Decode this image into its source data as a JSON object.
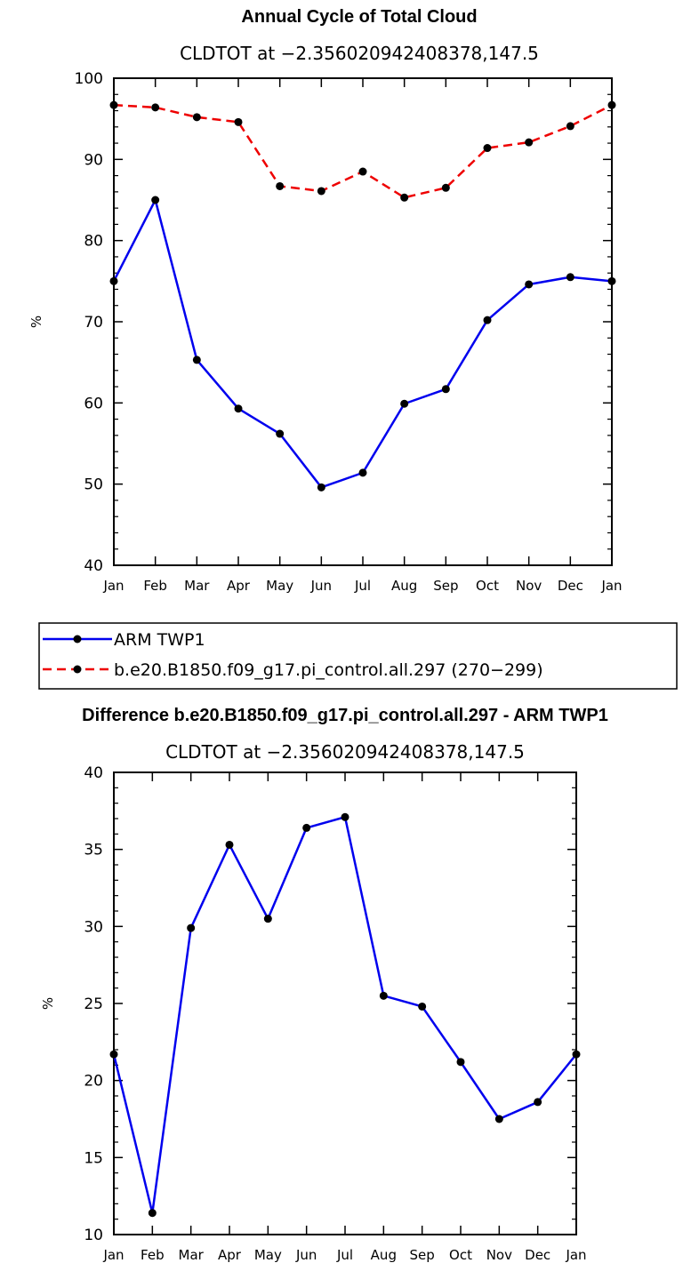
{
  "colors": {
    "blue": "#0000ee",
    "red": "#ee0000",
    "marker": "#000000"
  },
  "chart_data": [
    {
      "type": "line",
      "title": "Annual Cycle of Total Cloud",
      "subtitle": "CLDTOT at −2.356020942408378,147.5",
      "ylabel": "%",
      "ylim": [
        40,
        100
      ],
      "yticks": [
        "40",
        "50",
        "60",
        "70",
        "80",
        "90",
        "100"
      ],
      "categories": [
        "Jan",
        "Feb",
        "Mar",
        "Apr",
        "May",
        "Jun",
        "Jul",
        "Aug",
        "Sep",
        "Oct",
        "Nov",
        "Dec",
        "Jan"
      ],
      "series": [
        {
          "name": "ARM TWP1",
          "color": "#0000ee",
          "dash": "solid",
          "values": [
            75.0,
            85.0,
            65.3,
            59.3,
            56.2,
            49.6,
            51.4,
            59.9,
            61.7,
            70.2,
            74.6,
            75.5,
            75.0
          ]
        },
        {
          "name": "b.e20.B1850.f09_g17.pi_control.all.297 (270−299)",
          "color": "#ee0000",
          "dash": "dashed",
          "values": [
            96.7,
            96.4,
            95.2,
            94.6,
            86.7,
            86.1,
            88.5,
            85.3,
            86.5,
            91.4,
            92.1,
            94.1,
            96.7
          ]
        }
      ],
      "legend": "below"
    },
    {
      "type": "line",
      "title": "Difference b.e20.B1850.f09_g17.pi_control.all.297 - ARM TWP1",
      "subtitle": "CLDTOT at −2.356020942408378,147.5",
      "ylabel": "%",
      "ylim": [
        10,
        40
      ],
      "yticks": [
        "10",
        "15",
        "20",
        "25",
        "30",
        "35",
        "40"
      ],
      "categories": [
        "Jan",
        "Feb",
        "Mar",
        "Apr",
        "May",
        "Jun",
        "Jul",
        "Aug",
        "Sep",
        "Oct",
        "Nov",
        "Dec",
        "Jan"
      ],
      "series": [
        {
          "color": "#0000ee",
          "dash": "solid",
          "values": [
            21.7,
            11.4,
            29.9,
            35.3,
            30.5,
            36.4,
            37.1,
            25.5,
            24.8,
            21.2,
            17.5,
            18.6,
            21.7
          ]
        }
      ]
    }
  ]
}
